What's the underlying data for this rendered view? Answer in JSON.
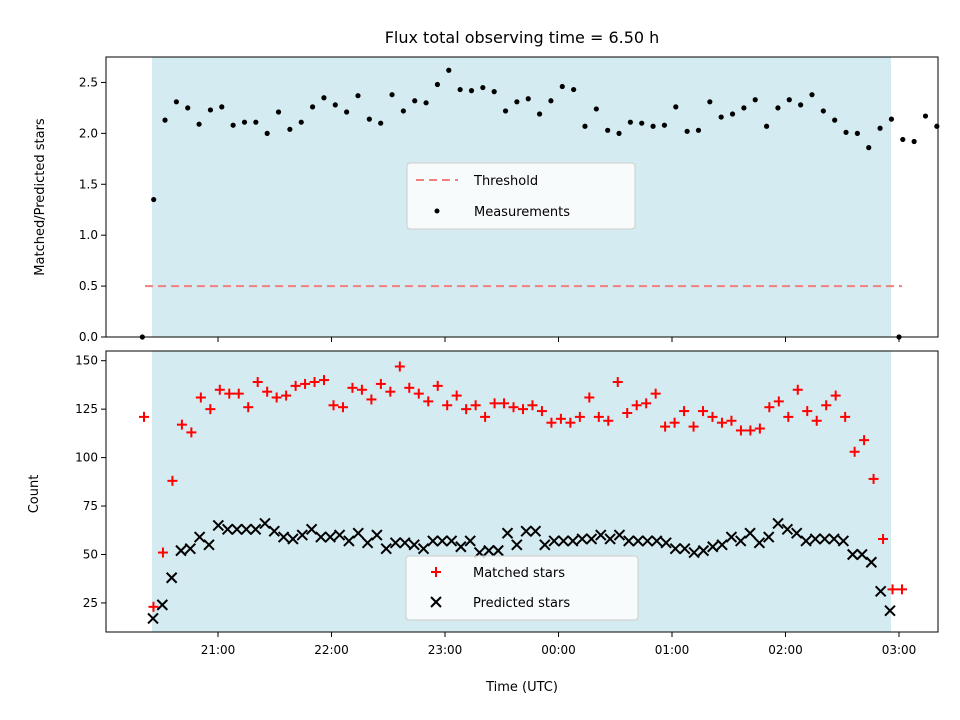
{
  "chart_data": [
    {
      "type": "scatter",
      "title": "Flux total observing time = 6.50 h",
      "xlabel": "",
      "ylabel": "Matched/Predicted stars",
      "ylim": [
        0,
        2.75
      ],
      "yticks": [
        "0.0",
        "0.5",
        "1.0",
        "1.5",
        "2.0",
        "2.5"
      ],
      "x_time_range": [
        "20:20",
        "03:20"
      ],
      "observing_window": [
        "20:26",
        "02:56"
      ],
      "observing_window_color": "#d4ebf1",
      "legend_position": "center",
      "threshold": {
        "name": "Threshold",
        "value": 0.5,
        "color": "#f08080",
        "style": "dashed"
      },
      "series": [
        {
          "name": "Measurements",
          "marker": "dot",
          "color": "#000000",
          "points": [
            [
              "20:20",
              0.0
            ],
            [
              "20:26",
              1.35
            ],
            [
              "20:32",
              2.13
            ],
            [
              "20:38",
              2.31
            ],
            [
              "20:44",
              2.25
            ],
            [
              "20:50",
              2.09
            ],
            [
              "20:56",
              2.23
            ],
            [
              "21:02",
              2.26
            ],
            [
              "21:08",
              2.08
            ],
            [
              "21:14",
              2.11
            ],
            [
              "21:20",
              2.11
            ],
            [
              "21:26",
              2.0
            ],
            [
              "21:32",
              2.21
            ],
            [
              "21:38",
              2.04
            ],
            [
              "21:44",
              2.11
            ],
            [
              "21:50",
              2.26
            ],
            [
              "21:56",
              2.35
            ],
            [
              "22:02",
              2.28
            ],
            [
              "22:08",
              2.21
            ],
            [
              "22:14",
              2.37
            ],
            [
              "22:20",
              2.14
            ],
            [
              "22:26",
              2.1
            ],
            [
              "22:32",
              2.38
            ],
            [
              "22:38",
              2.22
            ],
            [
              "22:44",
              2.32
            ],
            [
              "22:50",
              2.3
            ],
            [
              "22:56",
              2.48
            ],
            [
              "23:02",
              2.62
            ],
            [
              "23:08",
              2.43
            ],
            [
              "23:14",
              2.42
            ],
            [
              "23:20",
              2.45
            ],
            [
              "23:26",
              2.41
            ],
            [
              "23:32",
              2.22
            ],
            [
              "23:38",
              2.31
            ],
            [
              "23:44",
              2.34
            ],
            [
              "23:50",
              2.19
            ],
            [
              "23:56",
              2.32
            ],
            [
              "00:02",
              2.46
            ],
            [
              "00:08",
              2.43
            ],
            [
              "00:14",
              2.07
            ],
            [
              "00:20",
              2.24
            ],
            [
              "00:26",
              2.03
            ],
            [
              "00:32",
              2.0
            ],
            [
              "00:38",
              2.11
            ],
            [
              "00:44",
              2.1
            ],
            [
              "00:50",
              2.07
            ],
            [
              "00:56",
              2.08
            ],
            [
              "01:02",
              2.26
            ],
            [
              "01:08",
              2.02
            ],
            [
              "01:14",
              2.03
            ],
            [
              "01:20",
              2.31
            ],
            [
              "01:26",
              2.16
            ],
            [
              "01:32",
              2.19
            ],
            [
              "01:38",
              2.25
            ],
            [
              "01:44",
              2.33
            ],
            [
              "01:50",
              2.07
            ],
            [
              "01:56",
              2.25
            ],
            [
              "02:02",
              2.33
            ],
            [
              "02:08",
              2.28
            ],
            [
              "02:14",
              2.38
            ],
            [
              "02:20",
              2.22
            ],
            [
              "02:26",
              2.13
            ],
            [
              "02:32",
              2.01
            ],
            [
              "02:38",
              2.0
            ],
            [
              "02:44",
              1.86
            ],
            [
              "02:50",
              2.05
            ],
            [
              "02:56",
              2.14
            ],
            [
              "03:02",
              1.94
            ],
            [
              "03:08",
              1.92
            ],
            [
              "03:14",
              2.17
            ],
            [
              "03:20",
              2.07
            ]
          ]
        }
      ]
    },
    {
      "type": "scatter",
      "title": "",
      "xlabel": "Time (UTC)",
      "ylabel": "Count",
      "ylim": [
        10,
        155
      ],
      "yticks": [
        "25",
        "50",
        "75",
        "100",
        "125",
        "150"
      ],
      "xticks": [
        "21:00",
        "22:00",
        "23:00",
        "00:00",
        "01:00",
        "02:00",
        "03:00"
      ],
      "legend_position": "bottom center",
      "series": [
        {
          "name": "Matched stars",
          "marker": "plus",
          "color": "#ff0000",
          "values": [
            121,
            23,
            51,
            88,
            117,
            113,
            131,
            125,
            135,
            133,
            133,
            126,
            139,
            134,
            131,
            132,
            137,
            138,
            139,
            140,
            127,
            126,
            136,
            135,
            130,
            138,
            134,
            147,
            136,
            133,
            129,
            137,
            127,
            132,
            125,
            127,
            121,
            128,
            128,
            126,
            125,
            127,
            124,
            118,
            120,
            118,
            121,
            131,
            121,
            119,
            139,
            123,
            127,
            128,
            133,
            116,
            118,
            124,
            116,
            124,
            121,
            118,
            119,
            114,
            114,
            115,
            126,
            129,
            121,
            135,
            124,
            119,
            127,
            132,
            121,
            103,
            109,
            89,
            58,
            32,
            32
          ]
        },
        {
          "name": "Predicted stars",
          "marker": "x",
          "color": "#000000",
          "values": [
            17,
            24,
            38,
            52,
            53,
            59,
            55,
            65,
            63,
            63,
            63,
            63,
            66,
            62,
            59,
            58,
            60,
            63,
            59,
            59,
            60,
            57,
            61,
            56,
            60,
            53,
            56,
            56,
            55,
            53,
            57,
            57,
            57,
            54,
            57,
            51,
            52,
            52,
            61,
            55,
            62,
            62,
            55,
            57,
            57,
            57,
            58,
            58,
            60,
            58,
            60,
            57,
            57,
            57,
            57,
            56,
            53,
            53,
            51,
            52,
            54,
            55,
            59,
            57,
            61,
            56,
            59,
            66,
            63,
            61,
            57,
            58,
            58,
            58,
            57,
            50,
            50,
            46,
            31,
            21
          ]
        }
      ]
    }
  ]
}
